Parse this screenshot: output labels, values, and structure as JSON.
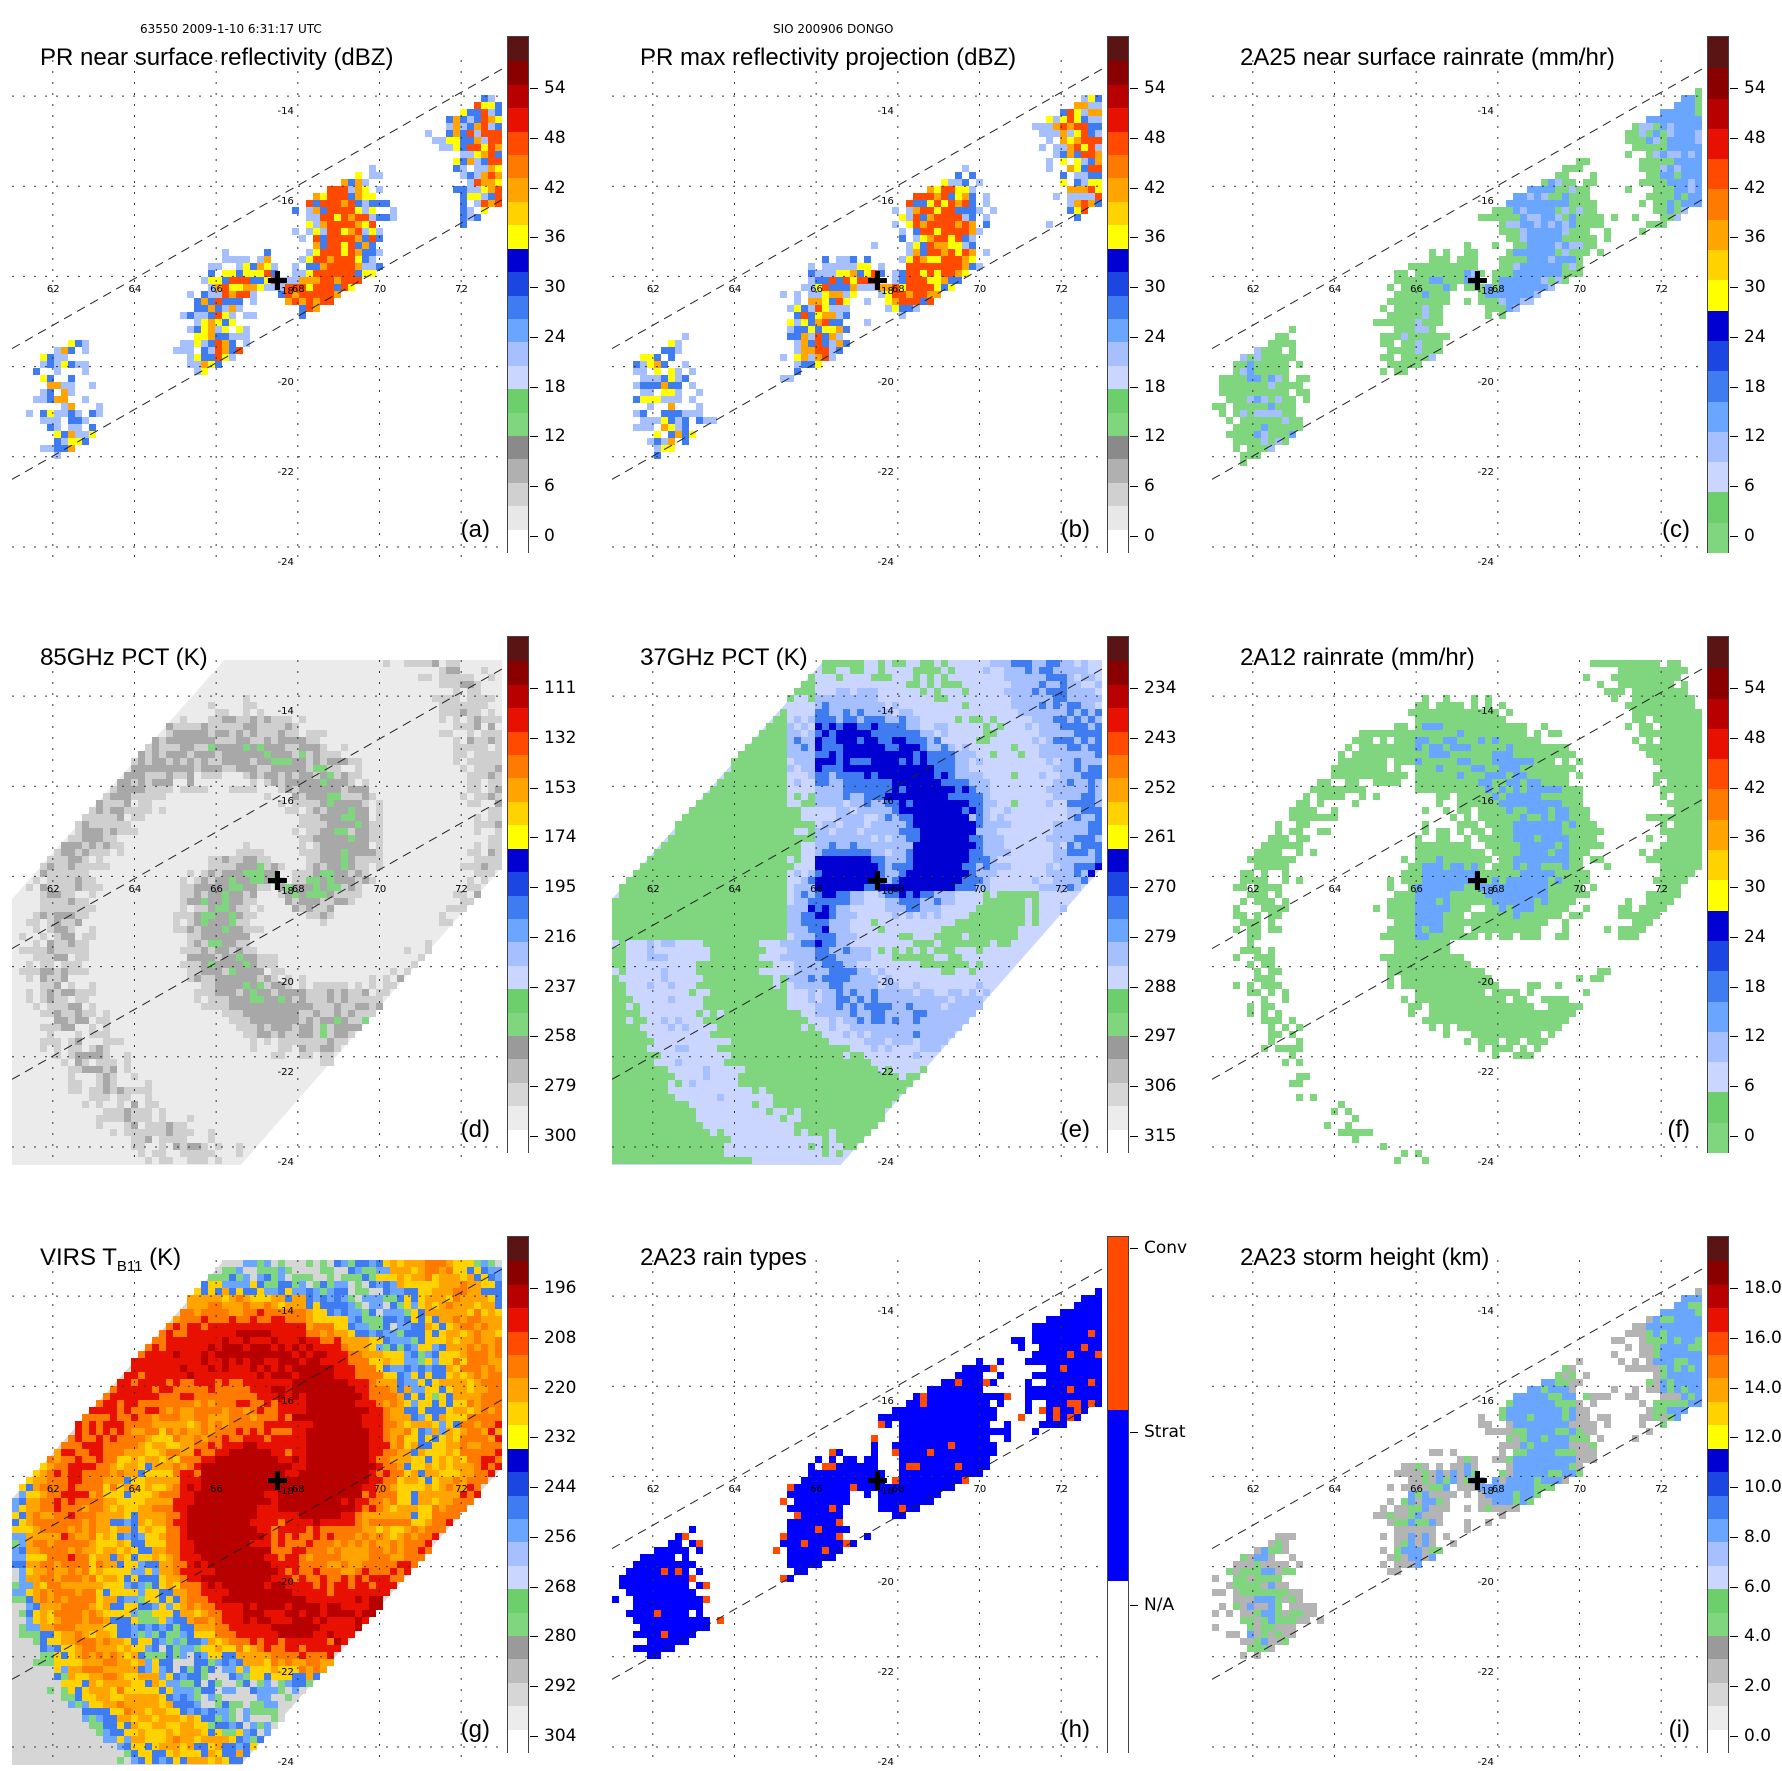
{
  "header": {
    "left": "63550 2009-1-10 6:31:17 UTC",
    "center": "SIO 200906 DONGO"
  },
  "lat_labels": [
    "-14",
    "-16",
    "-18",
    "-20",
    "-22",
    "-24"
  ],
  "lon_labels": [
    "62",
    "64",
    "66",
    "68",
    "70",
    "72"
  ],
  "panels": [
    {
      "id": "a",
      "title": "PR near surface reflectivity (dBZ)",
      "label": "(a)",
      "scale": "dbz",
      "ticks": [
        "54",
        "48",
        "42",
        "36",
        "30",
        "24",
        "18",
        "12",
        "6",
        "0"
      ],
      "field": "swath",
      "style": "scatter"
    },
    {
      "id": "b",
      "title": "PR max reflectivity projection (dBZ)",
      "label": "(b)",
      "scale": "dbz",
      "ticks": [
        "54",
        "48",
        "42",
        "36",
        "30",
        "24",
        "18",
        "12",
        "6",
        "0"
      ],
      "field": "swath",
      "style": "contour"
    },
    {
      "id": "c",
      "title": "2A25 near surface rainrate (mm/hr)",
      "label": "(c)",
      "scale": "rain",
      "ticks": [
        "54",
        "48",
        "42",
        "36",
        "30",
        "24",
        "18",
        "12",
        "6",
        "0"
      ],
      "field": "swath",
      "style": "green"
    },
    {
      "id": "d",
      "title": "85GHz PCT (K)",
      "label": "(d)",
      "scale": "pct85",
      "ticks": [
        "111",
        "132",
        "153",
        "174",
        "195",
        "216",
        "237",
        "258",
        "279",
        "300"
      ],
      "field": "wide",
      "style": "grey"
    },
    {
      "id": "e",
      "title": "37GHz PCT (K)",
      "label": "(e)",
      "scale": "pct37",
      "ticks": [
        "234",
        "243",
        "252",
        "261",
        "270",
        "279",
        "288",
        "297",
        "306",
        "315"
      ],
      "field": "wide",
      "style": "bluegreen"
    },
    {
      "id": "f",
      "title": "2A12 rainrate (mm/hr)",
      "label": "(f)",
      "scale": "rain",
      "ticks": [
        "54",
        "48",
        "42",
        "36",
        "30",
        "24",
        "18",
        "12",
        "6",
        "0"
      ],
      "field": "wide",
      "style": "greenblob"
    },
    {
      "id": "g",
      "title_main": "VIRS T",
      "title_sub": "B11",
      "title_end": " (K)",
      "label": "(g)",
      "scale": "virs",
      "ticks": [
        "196",
        "208",
        "220",
        "232",
        "244",
        "256",
        "268",
        "280",
        "292",
        "304"
      ],
      "field": "wide",
      "style": "virs"
    },
    {
      "id": "h",
      "title": "2A23 rain types",
      "label": "(h)",
      "scale": "types",
      "ticks": [
        "Conv",
        "Strat",
        "N/A"
      ],
      "field": "swath",
      "style": "types"
    },
    {
      "id": "i",
      "title": "2A23 storm height (km)",
      "label": "(i)",
      "scale": "height",
      "ticks": [
        "18.0",
        "16.0",
        "14.0",
        "12.0",
        "10.0",
        "8.0",
        "6.0",
        "4.0",
        "2.0",
        "0.0"
      ],
      "field": "swath",
      "style": "height"
    }
  ],
  "storm_center_lon": 67.5,
  "storm_center_lat": -18.1,
  "colors": {
    "dbz": [
      "#ffffff",
      "#e4e4e4",
      "#c8c8c8",
      "#a8a8a8",
      "#7fd67f",
      "#6ccf6c",
      "#c8d4ff",
      "#a0bcff",
      "#5e9cff",
      "#3c74f0",
      "#1a3ee0",
      "#0000d0",
      "#ffff00",
      "#ffd000",
      "#ffa000",
      "#ff7800",
      "#ff4a00",
      "#e81000",
      "#b80000",
      "#8a0000",
      "#5a1010"
    ],
    "rain": [
      "#7fd67f",
      "#6ccf6c",
      "#c8d4ff",
      "#a0bcff",
      "#5e9cff",
      "#3c74f0",
      "#1a3ee0",
      "#0000d0",
      "#ffff00",
      "#ffd000",
      "#ffa000",
      "#ff7800",
      "#ff4a00",
      "#e81000",
      "#b80000",
      "#8a0000",
      "#5a1010"
    ],
    "types": [
      "#ffffff",
      "#0000ff",
      "#ff4a00"
    ]
  }
}
